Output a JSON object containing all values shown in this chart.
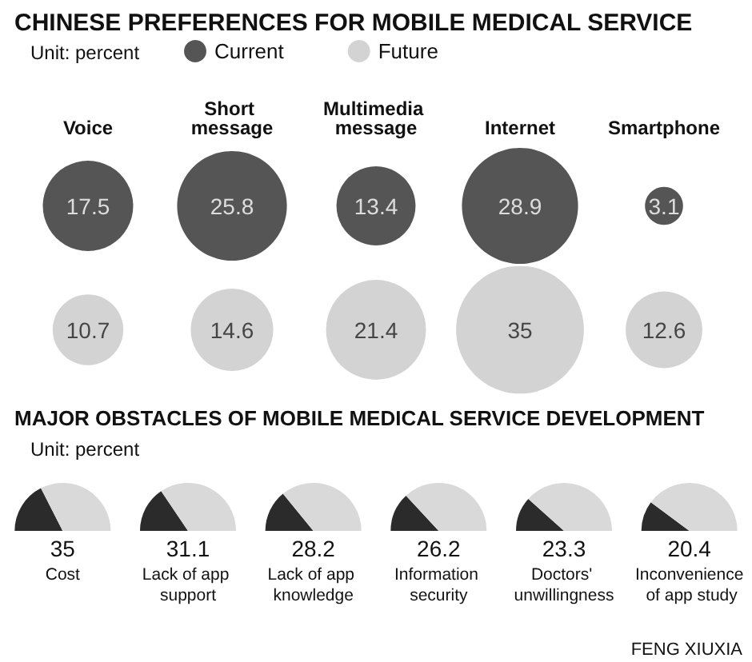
{
  "chart_data": [
    {
      "type": "other",
      "title": "CHINESE PREFERENCES FOR MOBILE MEDICAL SERVICE",
      "subtitle": "Unit: percent",
      "categories": [
        "Voice",
        "Short message",
        "Multimedia message",
        "Internet",
        "Smartphone"
      ],
      "series": [
        {
          "name": "Current",
          "color": "#2b2b2b",
          "values": [
            17.5,
            25.8,
            13.4,
            28.9,
            3.1
          ]
        },
        {
          "name": "Future",
          "color": "#c8c8c8",
          "values": [
            10.7,
            14.6,
            21.4,
            35,
            12.6
          ]
        }
      ],
      "data_labels": true,
      "legend": "top left"
    },
    {
      "type": "other",
      "title": "MAJOR OBSTACLES OF MOBILE MEDICAL SERVICE DEVELOPMENT",
      "subtitle": "Unit: percent",
      "categories": [
        "Cost",
        "Lack of app support",
        "Lack of app knowledge",
        "Information security",
        "Doctors' unwillingness",
        "Inconvenience of app study"
      ],
      "values": [
        35,
        31.1,
        28.2,
        26.2,
        23.3,
        20.4
      ],
      "colors": [
        "#2b2b2b",
        "#2b2b2b",
        "#2b2b2b",
        "#2b2b2b",
        "#2b2b2b",
        "#2b2b2b"
      ],
      "data_labels": true,
      "annotations": [
        "FENG XIUXIA"
      ]
    }
  ]
}
